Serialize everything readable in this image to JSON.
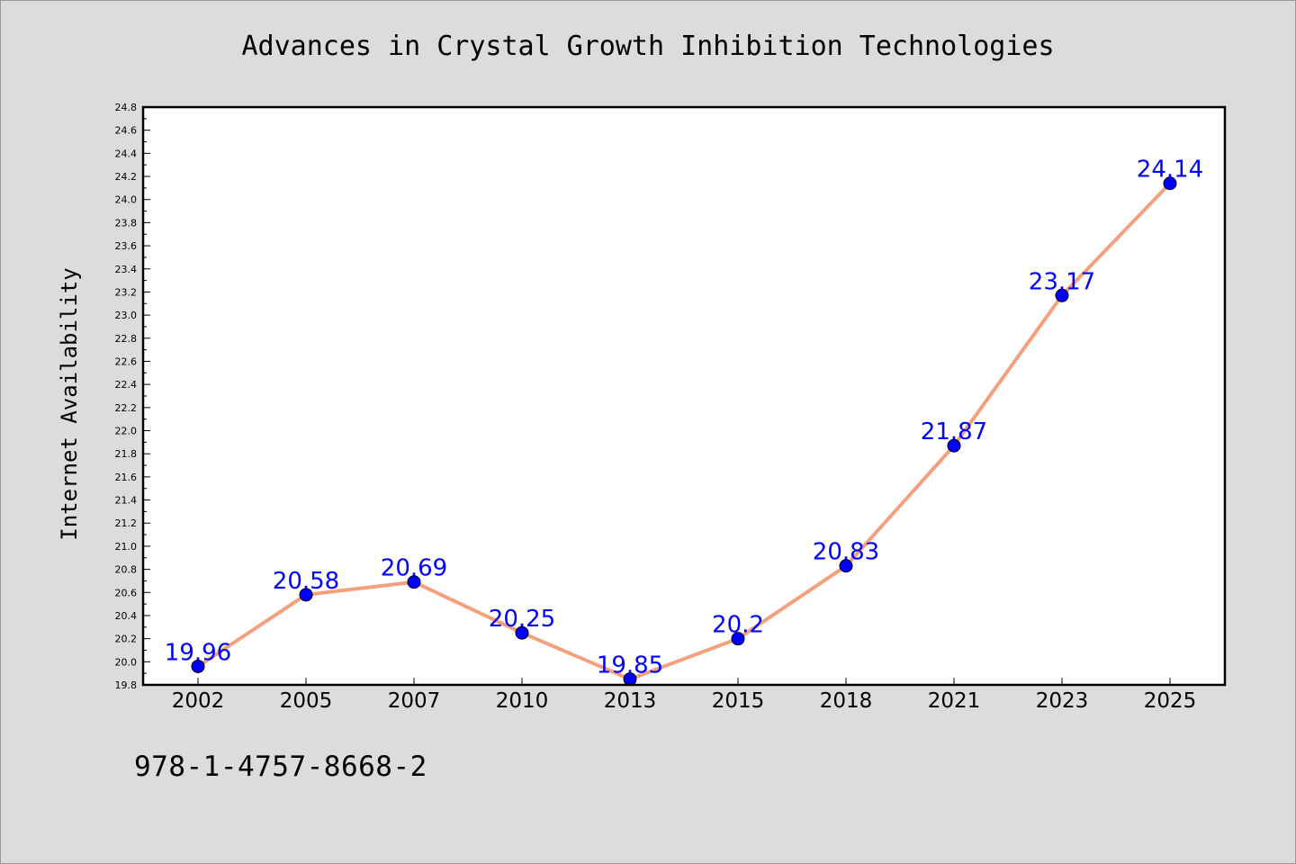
{
  "title": "Advances in Crystal Growth Inhibition Technologies",
  "footer_code": "978-1-4757-8668-2",
  "colors": {
    "background": "#dcdcdc",
    "plot_background": "#ffffff",
    "line": "#f4a07c",
    "marker": "#0000ff",
    "data_label": "#0000ff"
  },
  "chart_data": {
    "type": "line",
    "title": "Advances in Crystal Growth Inhibition Technologies",
    "xlabel": "",
    "ylabel": "Internet Availability",
    "x": [
      "2002",
      "2005",
      "2007",
      "2010",
      "2013",
      "2015",
      "2018",
      "2021",
      "2023",
      "2025"
    ],
    "series": [
      {
        "values": [
          19.96,
          20.58,
          20.69,
          20.25,
          19.85,
          20.2,
          20.83,
          21.87,
          23.17,
          24.14
        ],
        "labels": [
          "19.96",
          "20.58",
          "20.69",
          "20.25",
          "19.85",
          "20.2",
          "20.83",
          "21.87",
          "23.17",
          "24.14"
        ]
      }
    ],
    "ylim": [
      19.8,
      24.8
    ],
    "y_major_ticks": [
      "19.8",
      "20.0",
      "20.2",
      "20.4",
      "20.6",
      "20.8",
      "21.0",
      "21.2",
      "21.4",
      "21.6",
      "21.8",
      "22.0",
      "22.2",
      "22.4",
      "22.6",
      "22.8",
      "23.0",
      "23.2",
      "23.4",
      "23.6",
      "23.8",
      "24.0",
      "24.2",
      "24.4",
      "24.6",
      "24.8"
    ],
    "y_minor_step": 0.1,
    "grid": false,
    "legend": "none",
    "marker": "circle"
  }
}
